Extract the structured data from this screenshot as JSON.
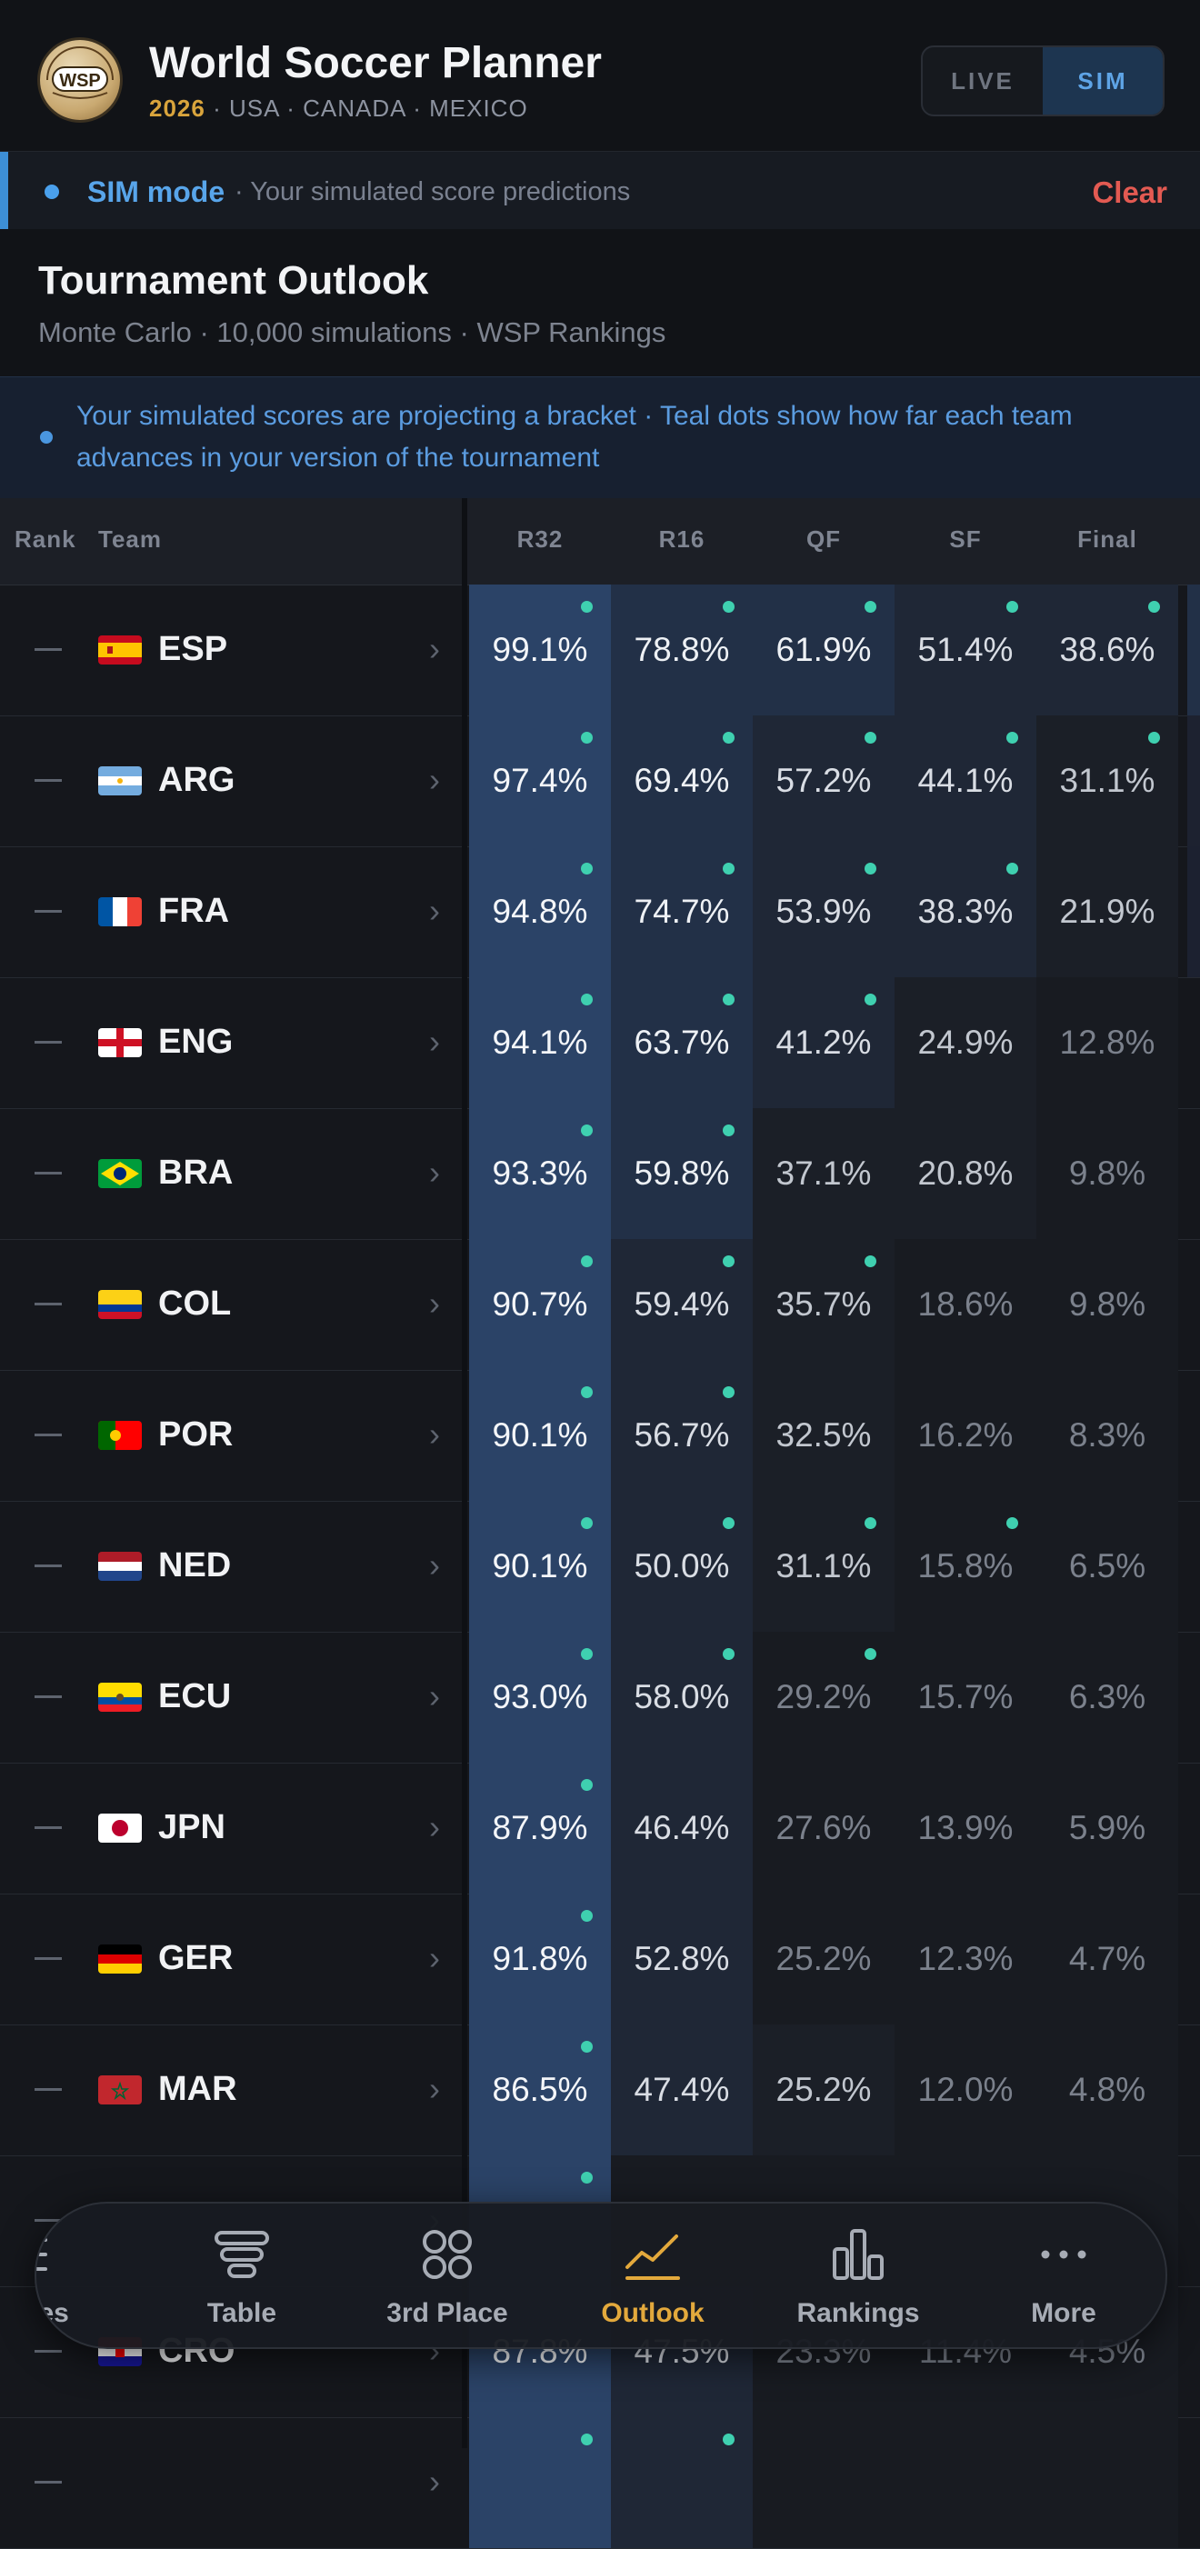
{
  "app": {
    "title": "World Soccer Planner",
    "logo_text": "WSP",
    "year": "2026",
    "hosts": " · USA · CANADA · MEXICO"
  },
  "mode_toggle": {
    "live_label": "LIVE",
    "sim_label": "SIM",
    "selected": "SIM"
  },
  "sim_banner": {
    "mode_label": "SIM mode",
    "description": "· Your simulated score predictions",
    "clear_label": "Clear"
  },
  "outlook": {
    "title": "Tournament Outlook",
    "subtitle": "Monte Carlo · 10,000 simulations · WSP Rankings"
  },
  "info": {
    "text": "Your simulated scores are projecting a bracket · Teal dots show how far each team advances in your version of the tournament"
  },
  "table": {
    "headers": {
      "rank": "Rank",
      "team": "Team",
      "r32": "R32",
      "r16": "R16",
      "qf": "QF",
      "sf": "SF",
      "final": "Final"
    },
    "rank_placeholder": "—",
    "rows": [
      {
        "code": "ESP",
        "flag": "esp",
        "values": [
          "99.1%",
          "78.8%",
          "61.9%",
          "51.4%",
          "38.6%"
        ],
        "advance": 5
      },
      {
        "code": "ARG",
        "flag": "arg",
        "values": [
          "97.4%",
          "69.4%",
          "57.2%",
          "44.1%",
          "31.1%"
        ],
        "advance": 5
      },
      {
        "code": "FRA",
        "flag": "fra",
        "values": [
          "94.8%",
          "74.7%",
          "53.9%",
          "38.3%",
          "21.9%"
        ],
        "advance": 4
      },
      {
        "code": "ENG",
        "flag": "eng",
        "values": [
          "94.1%",
          "63.7%",
          "41.2%",
          "24.9%",
          "12.8%"
        ],
        "advance": 3
      },
      {
        "code": "BRA",
        "flag": "bra",
        "values": [
          "93.3%",
          "59.8%",
          "37.1%",
          "20.8%",
          "9.8%"
        ],
        "advance": 2
      },
      {
        "code": "COL",
        "flag": "col",
        "values": [
          "90.7%",
          "59.4%",
          "35.7%",
          "18.6%",
          "9.8%"
        ],
        "advance": 3
      },
      {
        "code": "POR",
        "flag": "por",
        "values": [
          "90.1%",
          "56.7%",
          "32.5%",
          "16.2%",
          "8.3%"
        ],
        "advance": 2
      },
      {
        "code": "NED",
        "flag": "ned",
        "values": [
          "90.1%",
          "50.0%",
          "31.1%",
          "15.8%",
          "6.5%"
        ],
        "advance": 4
      },
      {
        "code": "ECU",
        "flag": "ecu",
        "values": [
          "93.0%",
          "58.0%",
          "29.2%",
          "15.7%",
          "6.3%"
        ],
        "advance": 3
      },
      {
        "code": "JPN",
        "flag": "jpn",
        "values": [
          "87.9%",
          "46.4%",
          "27.6%",
          "13.9%",
          "5.9%"
        ],
        "advance": 1
      },
      {
        "code": "GER",
        "flag": "ger",
        "values": [
          "91.8%",
          "52.8%",
          "25.2%",
          "12.3%",
          "4.7%"
        ],
        "advance": 1
      },
      {
        "code": "MAR",
        "flag": "mar",
        "values": [
          "86.5%",
          "47.4%",
          "25.2%",
          "12.0%",
          "4.8%"
        ],
        "advance": 1
      },
      {
        "code": "",
        "flag": "none",
        "values": [
          "",
          "",
          "",
          "",
          ""
        ],
        "advance": 1
      },
      {
        "code": "CRO",
        "flag": "cro",
        "values": [
          "87.8%",
          "47.5%",
          "23.3%",
          "11.4%",
          "4.5%"
        ],
        "advance": 0
      },
      {
        "code": "",
        "flag": "none",
        "values": [
          "",
          "",
          "",
          "",
          ""
        ],
        "advance": 2
      }
    ]
  },
  "bottom_nav": {
    "items": [
      {
        "label": "hes",
        "icon": "matches-icon",
        "active": false
      },
      {
        "label": "Table",
        "icon": "table-icon",
        "active": false
      },
      {
        "label": "3rd Place",
        "icon": "third-place-icon",
        "active": false
      },
      {
        "label": "Outlook",
        "icon": "outlook-icon",
        "active": true
      },
      {
        "label": "Rankings",
        "icon": "rankings-icon",
        "active": false
      },
      {
        "label": "More",
        "icon": "more-icon",
        "active": false
      }
    ]
  },
  "colors": {
    "accent": "#4aa0ec",
    "active_nav": "#e3a93c",
    "clear": "#e35a52",
    "teal_dot": "#3fd0b0"
  }
}
